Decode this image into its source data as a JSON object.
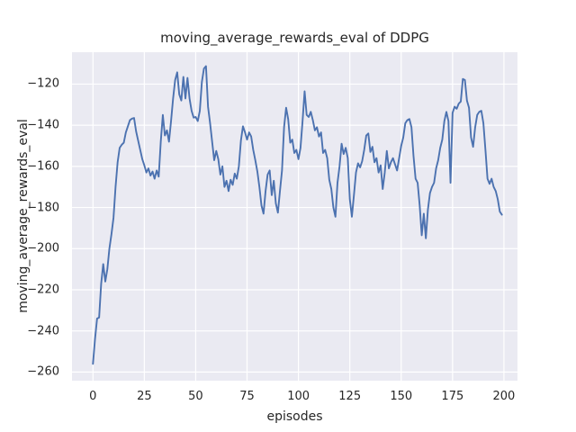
{
  "figure": {
    "background_color": "#ffffff",
    "axes_background_color": "#eaeaf2",
    "grid_color": "#ffffff",
    "text_color": "#262626",
    "line_color": "#4c72b0"
  },
  "chart_data": {
    "type": "line",
    "title": "moving_average_rewards_eval of DDPG",
    "xlabel": "episodes",
    "ylabel": "moving_average_rewards_eval",
    "grid": true,
    "legend": false,
    "xlim": [
      -10.2,
      206.6
    ],
    "ylim": [
      -264.2,
      -104.5
    ],
    "xticks": [
      0,
      25,
      50,
      75,
      100,
      125,
      150,
      175,
      200
    ],
    "yticks": [
      -120,
      -140,
      -160,
      -180,
      -200,
      -220,
      -240,
      -260
    ],
    "x_start": 0,
    "x_step": 1,
    "series": [
      {
        "name": "moving_average_rewards_eval",
        "color": "#4c72b0",
        "values": [
          -256,
          -244,
          -234,
          -233.5,
          -217,
          -207.5,
          -216,
          -210,
          -200,
          -193,
          -185,
          -170,
          -158,
          -151,
          -149.5,
          -148.5,
          -143.5,
          -140.5,
          -137.5,
          -136.8,
          -136.5,
          -143,
          -147.5,
          -152,
          -156.5,
          -159.5,
          -163,
          -161,
          -164.5,
          -162.5,
          -166,
          -162,
          -165,
          -148,
          -135,
          -145,
          -142.5,
          -148,
          -138,
          -127,
          -118,
          -114.3,
          -125,
          -128,
          -116.5,
          -127,
          -117,
          -127,
          -133,
          -136.3,
          -136,
          -138,
          -133,
          -119,
          -112.5,
          -111.3,
          -131,
          -139,
          -148,
          -157,
          -152.5,
          -156.5,
          -164,
          -160,
          -170,
          -167,
          -172,
          -166.5,
          -169,
          -163.5,
          -166,
          -160,
          -147.5,
          -140.5,
          -143.5,
          -147,
          -143.5,
          -145.5,
          -152,
          -157,
          -162.5,
          -170,
          -179,
          -183,
          -172,
          -164,
          -162,
          -174,
          -167,
          -178,
          -182.5,
          -172,
          -162,
          -141,
          -131.5,
          -137,
          -148.5,
          -147,
          -153.5,
          -152,
          -156.5,
          -151,
          -138,
          -123.5,
          -135,
          -136,
          -133.5,
          -137.5,
          -142.5,
          -141,
          -145.5,
          -143.5,
          -153.5,
          -152,
          -156,
          -166.5,
          -171,
          -180,
          -184.5,
          -168,
          -160,
          -149,
          -154,
          -151,
          -156,
          -176,
          -184.5,
          -174,
          -163,
          -158.5,
          -160.5,
          -157.5,
          -152,
          -145,
          -144,
          -153,
          -150.5,
          -158,
          -156,
          -163,
          -159.5,
          -171,
          -163,
          -152.5,
          -161,
          -158,
          -156,
          -159,
          -162,
          -156,
          -150,
          -146,
          -139,
          -137.5,
          -137,
          -141,
          -155,
          -166,
          -168,
          -179,
          -193.5,
          -183,
          -195,
          -181,
          -173,
          -170,
          -168,
          -161,
          -157,
          -151,
          -147,
          -138,
          -133.5,
          -138,
          -168,
          -134,
          -131,
          -132,
          -129.5,
          -128.5,
          -117.5,
          -118,
          -128,
          -131.5,
          -146,
          -150.5,
          -141,
          -135,
          -133.5,
          -133,
          -139,
          -152,
          -166,
          -168.5,
          -166,
          -170,
          -172,
          -176,
          -182,
          -183.5
        ]
      }
    ]
  }
}
